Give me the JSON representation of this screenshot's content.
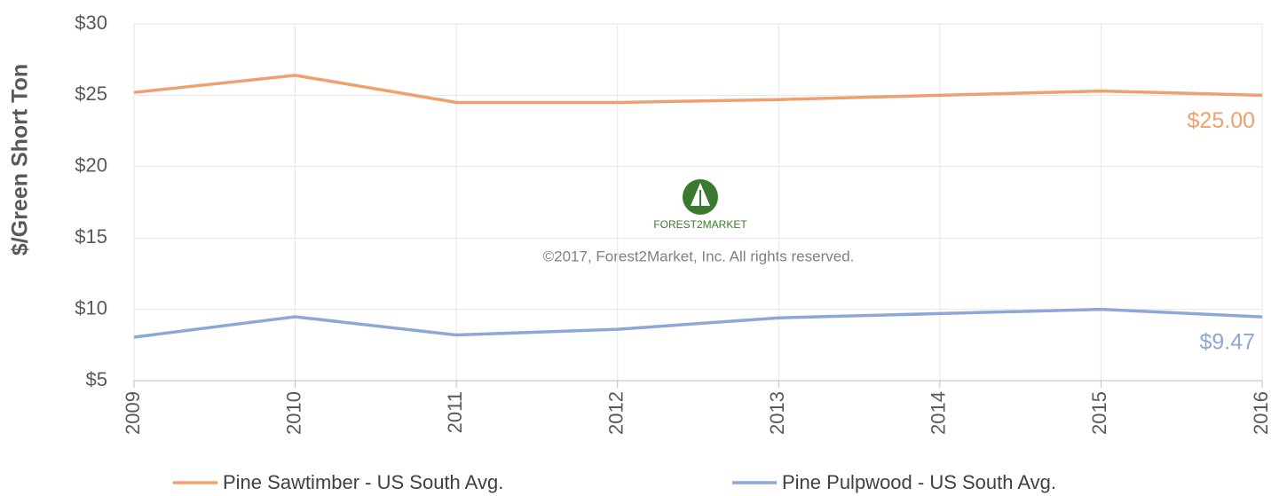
{
  "chart_data": {
    "type": "line",
    "y_label": "$/Green Short Ton",
    "watermark": {
      "logo_text": "FOREST2MARKET",
      "copyright": "©2017, Forest2Market, Inc. All rights reserved."
    },
    "categories": [
      "2009",
      "2010",
      "2011",
      "2012",
      "2013",
      "2014",
      "2015",
      "2016"
    ],
    "series": [
      {
        "name": "Pine Sawtimber - US South Avg.",
        "color": "#f0a06e",
        "values": [
          25.2,
          26.4,
          24.5,
          24.5,
          24.7,
          25.0,
          25.3,
          25.0
        ],
        "value_labels": [
          null,
          null,
          null,
          null,
          null,
          null,
          null,
          "$25.00"
        ]
      },
      {
        "name": "Pine Pulpwood - US South Avg.",
        "color": "#8ea6d8",
        "values": [
          8.05,
          9.48,
          8.2,
          8.6,
          9.4,
          9.7,
          10.0,
          9.47
        ],
        "value_labels": [
          null,
          null,
          null,
          null,
          null,
          null,
          null,
          "$9.47"
        ]
      }
    ],
    "ylim": [
      5,
      30
    ],
    "yticks": [
      {
        "value": 5,
        "label": "$5"
      },
      {
        "value": 10,
        "label": "$10"
      },
      {
        "value": 15,
        "label": "$15"
      },
      {
        "value": 20,
        "label": "$20"
      },
      {
        "value": 25,
        "label": "$25"
      },
      {
        "value": 30,
        "label": "$30"
      }
    ],
    "grid": true,
    "legend": "bottom"
  }
}
